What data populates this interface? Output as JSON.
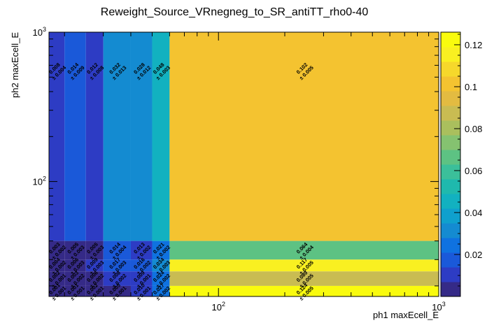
{
  "chart_data": {
    "type": "heatmap",
    "title": "Reweight_Source_VRnegneg_to_SR_antiTT_rho0-40",
    "xlabel": "ph1 maxEcell_E",
    "ylabel": "ph2 maxEcell_E",
    "x_scale": "log",
    "y_scale": "log",
    "xlim": [
      17,
      1000
    ],
    "ylim": [
      17,
      1000
    ],
    "x_edges": [
      17,
      20,
      25,
      30,
      40,
      50,
      60,
      1000
    ],
    "y_edges": [
      17,
      20,
      25,
      30,
      40,
      1000
    ],
    "x_ticks": [
      {
        "value": 100,
        "base": "10",
        "exp": "2"
      },
      {
        "value": 1000,
        "base": "10",
        "exp": "3"
      }
    ],
    "y_ticks": [
      {
        "value": 100,
        "base": "10",
        "exp": "2"
      },
      {
        "value": 1000,
        "base": "10",
        "exp": "3"
      }
    ],
    "z_range": [
      0,
      0.126
    ],
    "palette_ticks": [
      "0.02",
      "0.04",
      "0.06",
      "0.08",
      "0.1",
      "0.12"
    ],
    "palette_tick_values": [
      0.02,
      0.04,
      0.06,
      0.08,
      0.1,
      0.12
    ],
    "palette_colors": [
      "#352a87",
      "#2d3cc4",
      "#1a59d9",
      "#0f72e0",
      "#148bd1",
      "#0fa0cd",
      "#12b1c0",
      "#1fb9ad",
      "#3bbf9a",
      "#5dc283",
      "#85c270",
      "#aabf5d",
      "#c9bc52",
      "#e3bb41",
      "#f4c330",
      "#f6d82b",
      "#f9f021",
      "#f9fb0e"
    ],
    "cells": [
      {
        "ix": 0,
        "iy": 4,
        "value": 0.008,
        "text": "0.008",
        "err": "± 0.004"
      },
      {
        "ix": 1,
        "iy": 4,
        "value": 0.014,
        "text": "0.014",
        "err": "± 0.009"
      },
      {
        "ix": 2,
        "iy": 4,
        "value": 0.012,
        "text": "0.012",
        "err": "± 0.008"
      },
      {
        "ix": 3,
        "iy": 4,
        "value": 0.032,
        "text": "0.032",
        "err": "± 0.013"
      },
      {
        "ix": 4,
        "iy": 4,
        "value": 0.028,
        "text": "0.028",
        "err": "± 0.012"
      },
      {
        "ix": 5,
        "iy": 4,
        "value": 0.048,
        "text": "0.048",
        "err": "± 0.003"
      },
      {
        "ix": 6,
        "iy": 4,
        "value": 0.102,
        "text": "0.102",
        "err": "± 0.005"
      },
      {
        "ix": 0,
        "iy": 3,
        "value": 0.003,
        "text": "0.003",
        "err": "± 0.002"
      },
      {
        "ix": 1,
        "iy": 3,
        "value": 0.005,
        "text": "0.005",
        "err": "± 0.003"
      },
      {
        "ix": 2,
        "iy": 3,
        "value": 0.005,
        "text": "0.005",
        "err": "± 0.003"
      },
      {
        "ix": 3,
        "iy": 3,
        "value": 0.014,
        "text": "0.014",
        "err": "± 0.004"
      },
      {
        "ix": 4,
        "iy": 3,
        "value": 0.013,
        "text": "0.013",
        "err": "± 0.002"
      },
      {
        "ix": 5,
        "iy": 3,
        "value": 0.021,
        "text": "0.021",
        "err": "± 0.002"
      },
      {
        "ix": 6,
        "iy": 3,
        "value": 0.064,
        "text": "0.064",
        "err": "± 0.004"
      },
      {
        "ix": 0,
        "iy": 2,
        "value": 0.004,
        "text": "0.004",
        "err": "± 0.002"
      },
      {
        "ix": 1,
        "iy": 2,
        "value": 0.006,
        "text": "0.006",
        "err": "± 0.003"
      },
      {
        "ix": 2,
        "iy": 2,
        "value": 0.009,
        "text": "0.009",
        "err": "± 0.003"
      },
      {
        "ix": 3,
        "iy": 2,
        "value": 0.017,
        "text": "0.017",
        "err": "± 0.003"
      },
      {
        "ix": 4,
        "iy": 2,
        "value": 0.016,
        "text": "0.016",
        "err": "± 0.002"
      },
      {
        "ix": 5,
        "iy": 2,
        "value": 0.034,
        "text": "0.034",
        "err": "± 0.003"
      },
      {
        "ix": 6,
        "iy": 2,
        "value": 0.117,
        "text": "0.117",
        "err": "± 0.005"
      },
      {
        "ix": 0,
        "iy": 1,
        "value": 0.002,
        "text": "0.002",
        "err": "± 0.001"
      },
      {
        "ix": 1,
        "iy": 1,
        "value": 0.003,
        "text": "0.003",
        "err": "± 0.002"
      },
      {
        "ix": 2,
        "iy": 1,
        "value": 0.006,
        "text": "0.006",
        "err": "± 0.002"
      },
      {
        "ix": 3,
        "iy": 1,
        "value": 0.008,
        "text": "0.008",
        "err": "± 0.002"
      },
      {
        "ix": 4,
        "iy": 1,
        "value": 0.009,
        "text": "0.009",
        "err": "± 0.001"
      },
      {
        "ix": 5,
        "iy": 1,
        "value": 0.024,
        "text": "0.024",
        "err": "± 0.002"
      },
      {
        "ix": 6,
        "iy": 1,
        "value": 0.089,
        "text": "0.089",
        "err": "± 0.005"
      },
      {
        "ix": 0,
        "iy": 0,
        "value": 0.001,
        "text": "0.001",
        "err": "± 0.001"
      },
      {
        "ix": 1,
        "iy": 0,
        "value": 0.001,
        "text": "0.001",
        "err": "± 0.001"
      },
      {
        "ix": 2,
        "iy": 0,
        "value": 0.002,
        "text": "0.002",
        "err": "± 0.001"
      },
      {
        "ix": 3,
        "iy": 0,
        "value": 0.005,
        "text": "0.005",
        "err": "± 0.001"
      },
      {
        "ix": 4,
        "iy": 0,
        "value": 0.01,
        "text": "0.010",
        "err": "± 0.001"
      },
      {
        "ix": 5,
        "iy": 0,
        "value": 0.027,
        "text": "0.027",
        "err": "± 0.002"
      },
      {
        "ix": 6,
        "iy": 0,
        "value": 0.124,
        "text": "0.124",
        "err": "± 0.005"
      }
    ]
  }
}
